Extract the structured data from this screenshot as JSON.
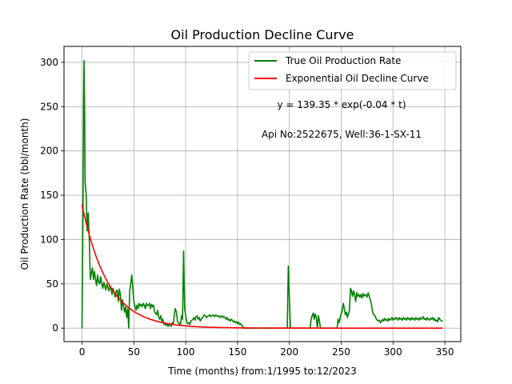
{
  "chart_data": {
    "type": "line",
    "title": "Oil Production Decline Curve",
    "xlabel": "Time (months) from:1/1995 to:12/2023",
    "ylabel": "Oil Production Rate (bbl/month)",
    "xlim": [
      -17.4,
      365.4
    ],
    "ylim": [
      -15.2,
      318.0
    ],
    "xticks": [
      0,
      50,
      100,
      150,
      200,
      250,
      300,
      350
    ],
    "yticks": [
      0,
      50,
      100,
      150,
      200,
      250,
      300
    ],
    "grid": true,
    "legend_position": "top-right",
    "annotations": [
      "y = 139.35 * exp(-0.04 * t)",
      "Api No:2522675, Well:36-1-SX-11"
    ],
    "fit": {
      "a": 139.35,
      "b": 0.04
    },
    "series": [
      {
        "name": "True Oil Production Rate",
        "color": "#008000",
        "points": [
          [
            0,
            0
          ],
          [
            1,
            140
          ],
          [
            1.5,
            260
          ],
          [
            2,
            302
          ],
          [
            2.6,
            230
          ],
          [
            3,
            165
          ],
          [
            4,
            150
          ],
          [
            5,
            110
          ],
          [
            6,
            130
          ],
          [
            7,
            100
          ],
          [
            8,
            55
          ],
          [
            9,
            62
          ],
          [
            10,
            68
          ],
          [
            11,
            55
          ],
          [
            12,
            64
          ],
          [
            13,
            55
          ],
          [
            14,
            48
          ],
          [
            15,
            60
          ],
          [
            16,
            52
          ],
          [
            17,
            50
          ],
          [
            18,
            58
          ],
          [
            19,
            50
          ],
          [
            20,
            45
          ],
          [
            21,
            52
          ],
          [
            22,
            47
          ],
          [
            23,
            43
          ],
          [
            24,
            50
          ],
          [
            25,
            46
          ],
          [
            26,
            42
          ],
          [
            27,
            48
          ],
          [
            28,
            44
          ],
          [
            29,
            38
          ],
          [
            30,
            45
          ],
          [
            31,
            40
          ],
          [
            32,
            35
          ],
          [
            33,
            42
          ],
          [
            34,
            43
          ],
          [
            35,
            30
          ],
          [
            36,
            44
          ],
          [
            37,
            38
          ],
          [
            38,
            20
          ],
          [
            39,
            32
          ],
          [
            40,
            25
          ],
          [
            41,
            18
          ],
          [
            42,
            24
          ],
          [
            43,
            12
          ],
          [
            44,
            22
          ],
          [
            45,
            0
          ],
          [
            46,
            42
          ],
          [
            47,
            50
          ],
          [
            48,
            60
          ],
          [
            49,
            45
          ],
          [
            50,
            30
          ],
          [
            51,
            25
          ],
          [
            52,
            20
          ],
          [
            53,
            26
          ],
          [
            54,
            22
          ],
          [
            55,
            28
          ],
          [
            56,
            25
          ],
          [
            57,
            27
          ],
          [
            58,
            24
          ],
          [
            59,
            28
          ],
          [
            60,
            26
          ],
          [
            61,
            22
          ],
          [
            62,
            28
          ],
          [
            63,
            25
          ],
          [
            64,
            26
          ],
          [
            65,
            28
          ],
          [
            66,
            22
          ],
          [
            67,
            27
          ],
          [
            68,
            24
          ],
          [
            69,
            26
          ],
          [
            70,
            18
          ],
          [
            71,
            17
          ],
          [
            72,
            15
          ],
          [
            73,
            20
          ],
          [
            74,
            12
          ],
          [
            75,
            10
          ],
          [
            76,
            14
          ],
          [
            77,
            8
          ],
          [
            78,
            10
          ],
          [
            79,
            4
          ],
          [
            80,
            6
          ],
          [
            81,
            3
          ],
          [
            82,
            5
          ],
          [
            83,
            2
          ],
          [
            84,
            4
          ],
          [
            85,
            3
          ],
          [
            86,
            2
          ],
          [
            87,
            6
          ],
          [
            88,
            4
          ],
          [
            89,
            15
          ],
          [
            90,
            22
          ],
          [
            91,
            18
          ],
          [
            92,
            8
          ],
          [
            93,
            6
          ],
          [
            94,
            5
          ],
          [
            95,
            4
          ],
          [
            96,
            14
          ],
          [
            97,
            10
          ],
          [
            98,
            87
          ],
          [
            99,
            22
          ],
          [
            100,
            14
          ],
          [
            101,
            7
          ],
          [
            102,
            5
          ],
          [
            103,
            6
          ],
          [
            104,
            4
          ],
          [
            105,
            8
          ],
          [
            106,
            9
          ],
          [
            107,
            10
          ],
          [
            108,
            12
          ],
          [
            109,
            9
          ],
          [
            110,
            13
          ],
          [
            111,
            14
          ],
          [
            112,
            10
          ],
          [
            113,
            12
          ],
          [
            114,
            8
          ],
          [
            115,
            10
          ],
          [
            116,
            12
          ],
          [
            117,
            13
          ],
          [
            118,
            15
          ],
          [
            119,
            14
          ],
          [
            120,
            12
          ],
          [
            121,
            13
          ],
          [
            122,
            14
          ],
          [
            123,
            15
          ],
          [
            124,
            13
          ],
          [
            125,
            14
          ],
          [
            126,
            15
          ],
          [
            127,
            14
          ],
          [
            128,
            13
          ],
          [
            129,
            15
          ],
          [
            130,
            14
          ],
          [
            131,
            13
          ],
          [
            132,
            14
          ],
          [
            133,
            12
          ],
          [
            134,
            13
          ],
          [
            135,
            14
          ],
          [
            136,
            12
          ],
          [
            137,
            13
          ],
          [
            138,
            12
          ],
          [
            139,
            10
          ],
          [
            140,
            12
          ],
          [
            141,
            9
          ],
          [
            142,
            10
          ],
          [
            143,
            8
          ],
          [
            144,
            10
          ],
          [
            145,
            9
          ],
          [
            146,
            7
          ],
          [
            147,
            8
          ],
          [
            148,
            6
          ],
          [
            149,
            7
          ],
          [
            150,
            5
          ],
          [
            151,
            7
          ],
          [
            152,
            4
          ],
          [
            153,
            5
          ],
          [
            154,
            3
          ],
          [
            155,
            2
          ],
          [
            156,
            0
          ],
          [
            157,
            0
          ],
          [
            198,
            0
          ],
          [
            199,
            70
          ],
          [
            200,
            35
          ],
          [
            201,
            0
          ],
          [
            220,
            0
          ],
          [
            221,
            10
          ],
          [
            222,
            14
          ],
          [
            223,
            17
          ],
          [
            224,
            10
          ],
          [
            225,
            16
          ],
          [
            226,
            12
          ],
          [
            227,
            0
          ],
          [
            228,
            14
          ],
          [
            229,
            8
          ],
          [
            230,
            0
          ],
          [
            246,
            0
          ],
          [
            247,
            10
          ],
          [
            248,
            6
          ],
          [
            249,
            12
          ],
          [
            250,
            16
          ],
          [
            251,
            20
          ],
          [
            252,
            28
          ],
          [
            253,
            22
          ],
          [
            254,
            15
          ],
          [
            255,
            18
          ],
          [
            256,
            12
          ],
          [
            257,
            16
          ],
          [
            258,
            20
          ],
          [
            259,
            45
          ],
          [
            260,
            42
          ],
          [
            261,
            36
          ],
          [
            262,
            42
          ],
          [
            263,
            38
          ],
          [
            264,
            30
          ],
          [
            265,
            40
          ],
          [
            266,
            36
          ],
          [
            267,
            38
          ],
          [
            268,
            35
          ],
          [
            269,
            38
          ],
          [
            270,
            34
          ],
          [
            271,
            39
          ],
          [
            272,
            36
          ],
          [
            273,
            38
          ],
          [
            274,
            37
          ],
          [
            275,
            35
          ],
          [
            276,
            40
          ],
          [
            277,
            36
          ],
          [
            278,
            32
          ],
          [
            279,
            28
          ],
          [
            280,
            20
          ],
          [
            281,
            16
          ],
          [
            282,
            15
          ],
          [
            283,
            13
          ],
          [
            284,
            10
          ],
          [
            285,
            9
          ],
          [
            286,
            8
          ],
          [
            287,
            9
          ],
          [
            288,
            6
          ],
          [
            289,
            8
          ],
          [
            290,
            10
          ],
          [
            291,
            8
          ],
          [
            292,
            11
          ],
          [
            293,
            9
          ],
          [
            294,
            10
          ],
          [
            295,
            8
          ],
          [
            296,
            11
          ],
          [
            297,
            9
          ],
          [
            298,
            10
          ],
          [
            299,
            12
          ],
          [
            300,
            9
          ],
          [
            301,
            11
          ],
          [
            302,
            10
          ],
          [
            303,
            12
          ],
          [
            304,
            11
          ],
          [
            305,
            9
          ],
          [
            306,
            12
          ],
          [
            307,
            10
          ],
          [
            308,
            11
          ],
          [
            309,
            9
          ],
          [
            310,
            12
          ],
          [
            311,
            10
          ],
          [
            312,
            11
          ],
          [
            313,
            9
          ],
          [
            314,
            12
          ],
          [
            315,
            10
          ],
          [
            316,
            11
          ],
          [
            317,
            9
          ],
          [
            318,
            12
          ],
          [
            319,
            10
          ],
          [
            320,
            11
          ],
          [
            321,
            9
          ],
          [
            322,
            12
          ],
          [
            323,
            10
          ],
          [
            324,
            11
          ],
          [
            325,
            9
          ],
          [
            326,
            12
          ],
          [
            327,
            10
          ],
          [
            328,
            11
          ],
          [
            329,
            13
          ],
          [
            330,
            10
          ],
          [
            331,
            11
          ],
          [
            332,
            9
          ],
          [
            333,
            12
          ],
          [
            334,
            10
          ],
          [
            335,
            9
          ],
          [
            336,
            11
          ],
          [
            337,
            10
          ],
          [
            338,
            12
          ],
          [
            339,
            9
          ],
          [
            340,
            11
          ],
          [
            341,
            8
          ],
          [
            342,
            9
          ],
          [
            343,
            7
          ],
          [
            344,
            12
          ],
          [
            345,
            10
          ],
          [
            346,
            9
          ],
          [
            347,
            8
          ],
          [
            348,
            8
          ]
        ]
      },
      {
        "name": "Exponential Oil Decline Curve",
        "color": "#ff0000",
        "model": "exponential",
        "x_range": [
          0,
          348
        ]
      }
    ]
  }
}
